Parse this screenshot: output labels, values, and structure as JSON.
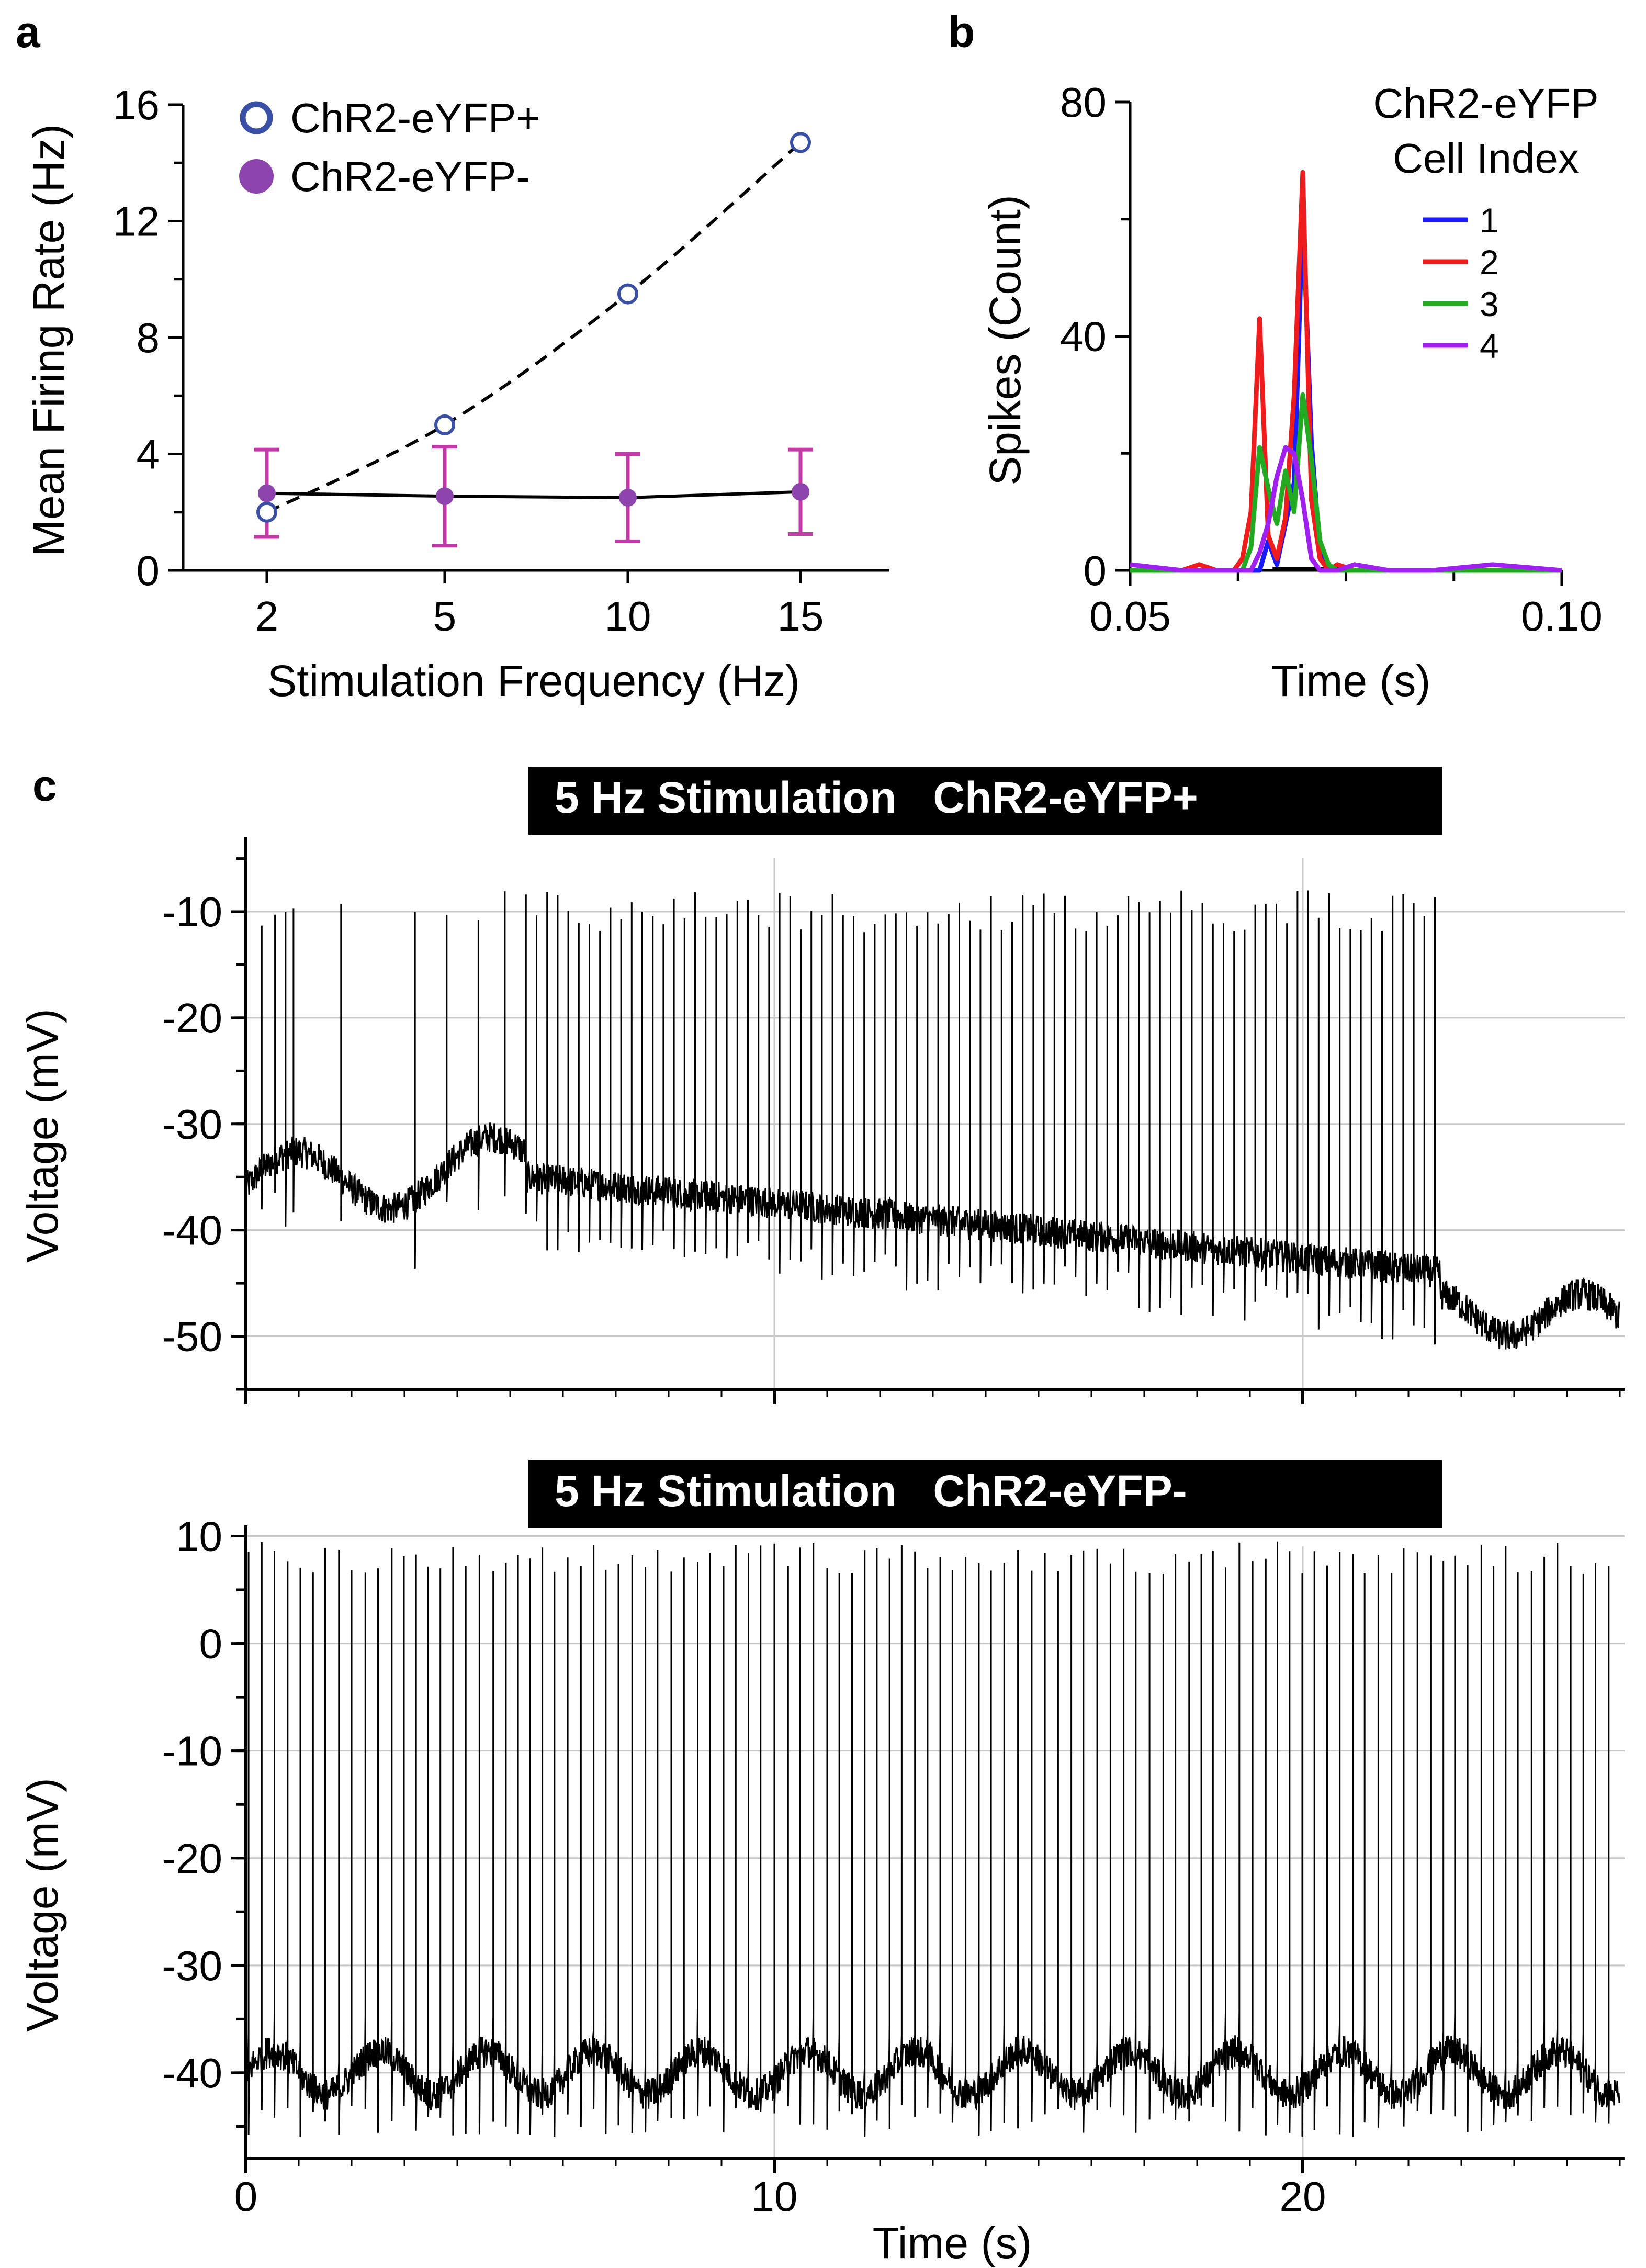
{
  "panel_labels": {
    "a": "a",
    "b": "b",
    "c": "c"
  },
  "chart_data": [
    {
      "panel": "a",
      "type": "line",
      "xlabel": "Stimulation Frequency (Hz)",
      "ylabel": "Mean Firing Rate (Hz)",
      "categories": [
        "2",
        "5",
        "10",
        "15"
      ],
      "x": [
        2,
        5,
        10,
        15
      ],
      "xticks": [
        2,
        5,
        10,
        15
      ],
      "yticks": [
        0,
        4,
        8,
        12,
        16
      ],
      "ylim": [
        0,
        16
      ],
      "legend_position": "top-left",
      "series": [
        {
          "name": "ChR2-eYFP+",
          "values": [
            2.0,
            5.0,
            9.5,
            14.7
          ],
          "marker": "open-circle",
          "line": "dashed",
          "color": "#3a4fa6"
        },
        {
          "name": "ChR2-eYFP-",
          "values": [
            2.65,
            2.55,
            2.5,
            2.7
          ],
          "error": [
            1.5,
            1.7,
            1.5,
            1.45
          ],
          "marker": "filled-circle",
          "line": "solid",
          "color": "#8e44ad",
          "error_color": "#c23ba8"
        }
      ]
    },
    {
      "panel": "b",
      "type": "line",
      "xlabel": "Time (s)",
      "ylabel": "Spikes (Count)",
      "xticks": [
        "0.05",
        "0.10"
      ],
      "yticks": [
        "0",
        "40",
        "80"
      ],
      "xlim": [
        0.05,
        0.1
      ],
      "ylim": [
        0,
        80
      ],
      "legend_title_1": "ChR2-eYFP",
      "legend_title_2": "Cell Index",
      "legend_position": "top-right",
      "x": [
        0.05,
        0.056,
        0.058,
        0.06,
        0.062,
        0.063,
        0.064,
        0.065,
        0.066,
        0.067,
        0.068,
        0.069,
        0.07,
        0.071,
        0.072,
        0.073,
        0.074,
        0.076,
        0.08,
        0.085,
        0.092,
        0.1
      ],
      "series": [
        {
          "name": "1",
          "color": "#1a1aff",
          "values": [
            0,
            0,
            0,
            0,
            0,
            0,
            0,
            0,
            5,
            1,
            8,
            15,
            61,
            22,
            3,
            0,
            0,
            0,
            0,
            0,
            0,
            0
          ]
        },
        {
          "name": "2",
          "color": "#ee1c1c",
          "values": [
            0,
            0,
            1,
            0,
            0,
            2,
            10,
            43,
            6,
            2,
            9,
            30,
            68,
            12,
            2,
            0,
            1,
            0,
            0,
            0,
            0,
            0
          ]
        },
        {
          "name": "3",
          "color": "#22aa22",
          "values": [
            0,
            0,
            0,
            0,
            0,
            0,
            4,
            21,
            14,
            8,
            17,
            10,
            30,
            19,
            5,
            1,
            0,
            0,
            0,
            0,
            0,
            0
          ]
        },
        {
          "name": "4",
          "color": "#a020f0",
          "values": [
            1,
            0,
            0,
            0,
            0,
            0,
            0,
            3,
            8,
            16,
            21,
            20,
            12,
            2,
            0,
            0,
            0,
            1,
            0,
            0,
            1,
            0
          ]
        }
      ]
    },
    {
      "panel": "c-top",
      "type": "line",
      "title": "5 Hz Stimulation   ChR2-eYFP+",
      "ylabel": "Voltage (mV)",
      "yticks": [
        "-50",
        "-40",
        "-30",
        "-20",
        "-10"
      ],
      "ytick_values": [
        -50,
        -40,
        -30,
        -20,
        -10
      ],
      "ylim": [
        -55,
        -3
      ],
      "xlim": [
        0,
        26
      ],
      "stimulation_window_s": [
        5.3,
        22.6
      ],
      "stimulation_rate_hz": 5,
      "baseline_mV": {
        "pre_start": -36,
        "pre_end": -34,
        "during_start": -35,
        "during_end": -44,
        "post": -48
      },
      "spike_peak_mV": -10,
      "color": "#000000"
    },
    {
      "panel": "c-bottom",
      "type": "line",
      "title": "5 Hz Stimulation   ChR2-eYFP-",
      "xlabel": "Time (s)",
      "ylabel": "Voltage (mV)",
      "xticks": [
        "0",
        "10",
        "20"
      ],
      "xtick_values": [
        0,
        10,
        20
      ],
      "yticks": [
        "10",
        "0",
        "-10",
        "-20",
        "-30",
        "-40"
      ],
      "ytick_values": [
        10,
        0,
        -10,
        -20,
        -30,
        -40
      ],
      "ylim": [
        -48,
        11
      ],
      "xlim": [
        0,
        26
      ],
      "baseline_mV": -40,
      "spike_peak_mV": 8,
      "spike_rate_hz": 4.2,
      "color": "#000000"
    }
  ]
}
